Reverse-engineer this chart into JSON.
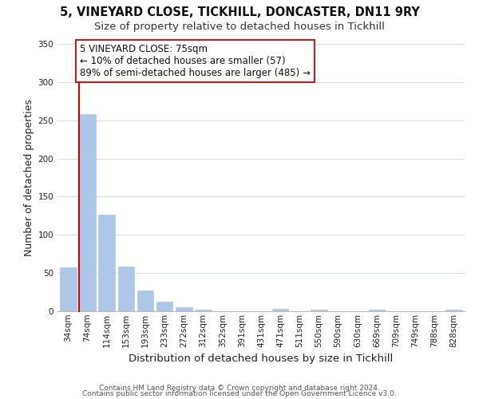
{
  "title_line1": "5, VINEYARD CLOSE, TICKHILL, DONCASTER, DN11 9RY",
  "title_line2": "Size of property relative to detached houses in Tickhill",
  "xlabel": "Distribution of detached houses by size in Tickhill",
  "ylabel": "Number of detached properties",
  "bar_labels": [
    "34sqm",
    "74sqm",
    "114sqm",
    "153sqm",
    "193sqm",
    "233sqm",
    "272sqm",
    "312sqm",
    "352sqm",
    "391sqm",
    "431sqm",
    "471sqm",
    "511sqm",
    "550sqm",
    "590sqm",
    "630sqm",
    "669sqm",
    "709sqm",
    "749sqm",
    "788sqm",
    "828sqm"
  ],
  "bar_values": [
    57,
    258,
    126,
    59,
    27,
    13,
    5,
    2,
    0,
    0,
    0,
    3,
    0,
    2,
    0,
    0,
    2,
    0,
    0,
    0,
    2
  ],
  "bar_color": "#aec6e8",
  "vline_color": "#cc0000",
  "ylim": [
    0,
    350
  ],
  "yticks": [
    0,
    50,
    100,
    150,
    200,
    250,
    300,
    350
  ],
  "annotation_text": "5 VINEYARD CLOSE: 75sqm\n← 10% of detached houses are smaller (57)\n89% of semi-detached houses are larger (485) →",
  "annotation_box_color": "#ffffff",
  "annotation_box_edgecolor": "#cc0000",
  "footer_line1": "Contains HM Land Registry data © Crown copyright and database right 2024.",
  "footer_line2": "Contains public sector information licensed under the Open Government Licence v3.0.",
  "bg_color": "#ffffff",
  "grid_color": "#d0dde8",
  "title_fontsize": 10.5,
  "subtitle_fontsize": 9.5,
  "axis_label_fontsize": 9,
  "tick_fontsize": 7.5,
  "annotation_fontsize": 8.5,
  "footer_fontsize": 6.5
}
